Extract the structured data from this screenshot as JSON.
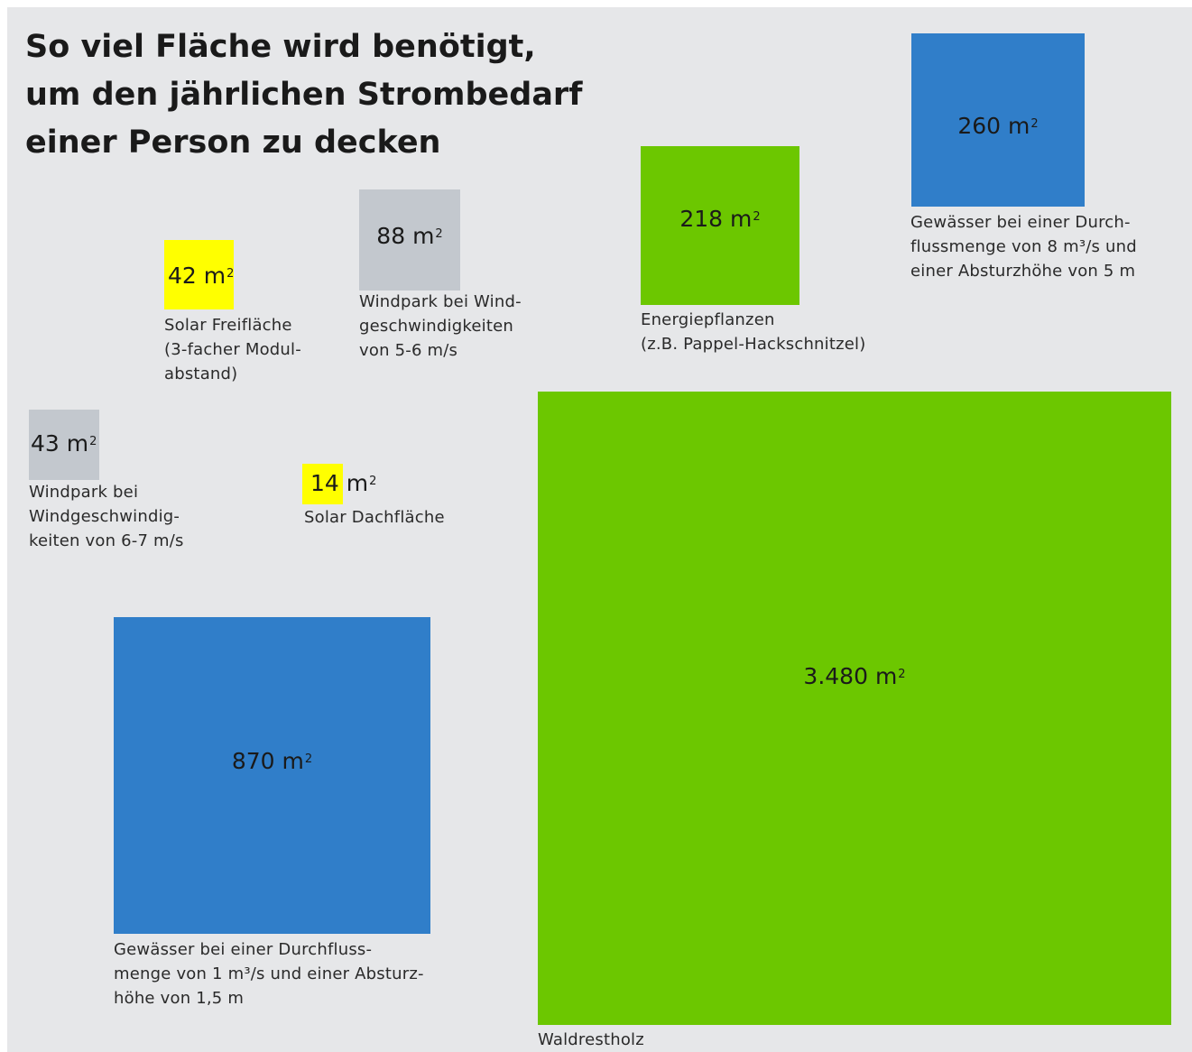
{
  "title": {
    "lines": [
      "So viel Fläche wird benötigt,",
      "um den jährlichen Strombedarf",
      "einer Person zu decken"
    ]
  },
  "unit": "m",
  "unit_sup": "2",
  "colors": {
    "background": "#e6e7e9",
    "solar": "#ffff00",
    "wind": "#c3c8ce",
    "water": "#307ec9",
    "biomass": "#6cc700"
  },
  "chart_data": {
    "type": "area-squares",
    "unit": "m²",
    "items": [
      {
        "value": 42,
        "value_label": "42",
        "category": "solar",
        "caption": [
          "Solar Freifläche",
          "(3-facher Modul-",
          "abstand)"
        ]
      },
      {
        "value": 88,
        "value_label": "88",
        "category": "wind",
        "caption": [
          "Windpark bei Wind-",
          "geschwindigkeiten",
          "von 5-6 m/s"
        ]
      },
      {
        "value": 218,
        "value_label": "218",
        "category": "biomass",
        "caption": [
          "Energiepflanzen",
          "(z.B. Pappel-Hackschnitzel)"
        ]
      },
      {
        "value": 260,
        "value_label": "260",
        "category": "water",
        "caption": [
          "Gewässer bei einer Durch-",
          "flussmenge von 8 m³/s und",
          "einer Absturzhöhe von 5 m"
        ]
      },
      {
        "value": 43,
        "value_label": "43",
        "category": "wind",
        "caption": [
          "Windpark bei",
          "Windgeschwindig-",
          "keiten von 6-7 m/s"
        ]
      },
      {
        "value": 14,
        "value_label": "14",
        "category": "solar",
        "caption": [
          "Solar Dachfläche"
        ]
      },
      {
        "value": 870,
        "value_label": "870",
        "category": "water",
        "caption": [
          "Gewässer bei einer Durchfluss-",
          "menge von 1 m³/s und einer Absturz-",
          "höhe von 1,5 m"
        ]
      },
      {
        "value": 3480,
        "value_label": "3.480",
        "category": "biomass",
        "caption": [
          "Waldrestholz"
        ]
      }
    ]
  }
}
